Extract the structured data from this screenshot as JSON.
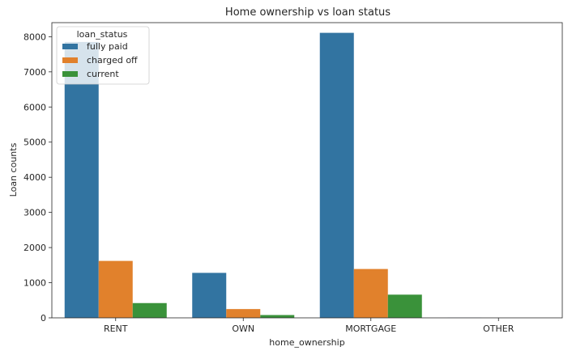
{
  "chart_data": {
    "type": "bar",
    "title": "Home ownership vs loan status",
    "xlabel": "home_ownership",
    "ylabel": "Loan counts",
    "categories": [
      "RENT",
      "OWN",
      "MORTGAGE",
      "OTHER"
    ],
    "ylim": [
      0,
      8400
    ],
    "yticks": [
      0,
      1000,
      2000,
      3000,
      4000,
      5000,
      6000,
      7000,
      8000
    ],
    "grid": false,
    "legend": {
      "title": "loan_status",
      "placement": "top-left"
    },
    "series": [
      {
        "name": "fully paid",
        "color": "#3274a1",
        "values": [
          7850,
          1280,
          8110,
          3
        ]
      },
      {
        "name": "charged off",
        "color": "#e1812c",
        "values": [
          1620,
          250,
          1390,
          0
        ]
      },
      {
        "name": "current",
        "color": "#3a923a",
        "values": [
          420,
          80,
          660,
          0
        ]
      }
    ]
  }
}
